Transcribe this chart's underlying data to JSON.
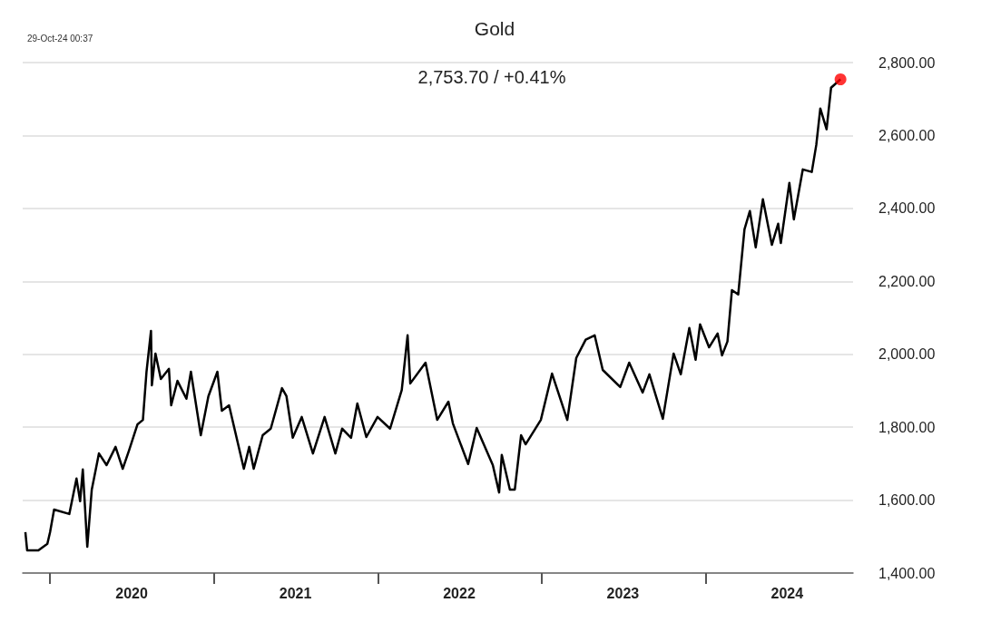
{
  "chart_data": {
    "type": "line",
    "title": "Gold",
    "subtitle": "2,753.70 / +0.41%",
    "annotations": [
      "29-Oct-24 00:37"
    ],
    "grid": "y",
    "marker": "none",
    "xlim": [
      "2019-11-01",
      "2024-11-25"
    ],
    "xticks": [
      {
        "value": "2020-01-01",
        "label": null
      },
      {
        "value": "2020-07-01",
        "label": "2020"
      },
      {
        "value": "2021-01-01",
        "label": null
      },
      {
        "value": "2021-07-01",
        "label": "2021"
      },
      {
        "value": "2022-01-01",
        "label": null
      },
      {
        "value": "2022-07-01",
        "label": "2022"
      },
      {
        "value": "2023-01-01",
        "label": null
      },
      {
        "value": "2023-07-01",
        "label": "2023"
      },
      {
        "value": "2024-01-01",
        "label": null
      },
      {
        "value": "2024-07-01",
        "label": "2024"
      }
    ],
    "ylim": [
      1400,
      2800
    ],
    "yticks": [
      {
        "value": 1400,
        "label": "1,400.00"
      },
      {
        "value": 1600,
        "label": "1,600.00"
      },
      {
        "value": 1800,
        "label": "1,800.00"
      },
      {
        "value": 2000,
        "label": "2,000.00"
      },
      {
        "value": 2200,
        "label": "2,200.00"
      },
      {
        "value": 2400,
        "label": "2,400.00"
      },
      {
        "value": 2600,
        "label": "2,600.00"
      },
      {
        "value": 2800,
        "label": "2,800.00"
      }
    ],
    "series": [
      {
        "color": "#000000",
        "x": [
          "2019-11-07",
          "2019-11-11",
          "2019-12-06",
          "2019-12-26",
          "2020-01-01",
          "2020-01-10",
          "2020-02-13",
          "2020-02-29",
          "2020-03-08",
          "2020-03-14",
          "2020-03-24",
          "2020-04-03",
          "2020-04-19",
          "2020-05-06",
          "2020-05-26",
          "2020-06-11",
          "2020-06-25",
          "2020-07-14",
          "2020-07-26",
          "2020-08-03",
          "2020-08-13",
          "2020-08-15",
          "2020-08-23",
          "2020-09-04",
          "2020-09-22",
          "2020-09-27",
          "2020-10-11",
          "2020-10-31",
          "2020-11-10",
          "2020-12-02",
          "2020-12-19",
          "2021-01-08",
          "2021-01-18",
          "2021-02-03",
          "2021-03-08",
          "2021-03-20",
          "2021-03-30",
          "2021-04-19",
          "2021-05-07",
          "2021-06-01",
          "2021-06-11",
          "2021-06-25",
          "2021-07-15",
          "2021-08-09",
          "2021-09-04",
          "2021-09-28",
          "2021-10-13",
          "2021-11-02",
          "2021-11-16",
          "2021-12-06",
          "2021-12-31",
          "2022-01-28",
          "2022-02-23",
          "2022-03-08",
          "2022-03-14",
          "2022-04-17",
          "2022-05-13",
          "2022-06-07",
          "2022-06-17",
          "2022-07-21",
          "2022-08-09",
          "2022-09-14",
          "2022-09-28",
          "2022-10-04",
          "2022-10-22",
          "2022-11-02",
          "2022-11-16",
          "2022-11-26",
          "2022-12-30",
          "2023-01-24",
          "2023-02-27",
          "2023-03-19",
          "2023-04-09",
          "2023-04-29",
          "2023-05-17",
          "2023-06-25",
          "2023-07-15",
          "2023-08-14",
          "2023-08-29",
          "2023-09-28",
          "2023-10-22",
          "2023-11-07",
          "2023-11-26",
          "2023-12-10",
          "2023-12-20",
          "2024-01-09",
          "2024-01-28",
          "2024-02-07",
          "2024-02-19",
          "2024-02-29",
          "2024-03-14",
          "2024-03-28",
          "2024-04-09",
          "2024-04-22",
          "2024-05-08",
          "2024-05-28",
          "2024-06-11",
          "2024-06-17",
          "2024-07-06",
          "2024-07-16",
          "2024-08-05",
          "2024-08-25",
          "2024-09-04",
          "2024-09-13",
          "2024-09-27",
          "2024-10-07",
          "2024-10-28"
        ],
        "values": [
          1512,
          1462,
          1462,
          1480,
          1512,
          1574,
          1562,
          1659,
          1597,
          1684,
          1472,
          1629,
          1728,
          1696,
          1746,
          1686,
          1736,
          1808,
          1820,
          1952,
          2064,
          1915,
          2002,
          1932,
          1960,
          1860,
          1927,
          1878,
          1952,
          1778,
          1885,
          1952,
          1845,
          1860,
          1686,
          1746,
          1686,
          1778,
          1796,
          1907,
          1885,
          1771,
          1828,
          1728,
          1828,
          1728,
          1796,
          1771,
          1865,
          1773,
          1828,
          1796,
          1902,
          2052,
          1920,
          1977,
          1820,
          1870,
          1810,
          1699,
          1798,
          1696,
          1621,
          1724,
          1629,
          1629,
          1778,
          1753,
          1820,
          1947,
          1820,
          1990,
          2040,
          2052,
          1957,
          1910,
          1977,
          1895,
          1945,
          1823,
          2002,
          1945,
          2072,
          1985,
          2082,
          2019,
          2057,
          1997,
          2035,
          2176,
          2164,
          2343,
          2393,
          2293,
          2425,
          2300,
          2358,
          2305,
          2470,
          2370,
          2507,
          2500,
          2574,
          2674,
          2617,
          2731,
          2754
        ]
      },
      {
        "type": "scatter",
        "color": "#ff0000",
        "marker": "circle",
        "x": [
          "2024-10-28"
        ],
        "values": [
          2754
        ]
      }
    ]
  }
}
